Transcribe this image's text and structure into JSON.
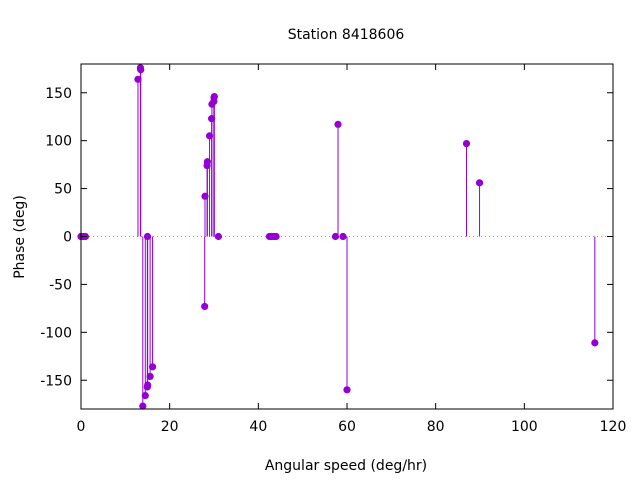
{
  "chart_data": {
    "type": "scatter",
    "style": "impulses-with-points",
    "title": "Station 8418606",
    "xlabel": "Angular speed (deg/hr)",
    "ylabel": "Phase (deg)",
    "xlim": [
      0,
      120
    ],
    "ylim": [
      -180,
      180
    ],
    "x_ticks": [
      0,
      20,
      40,
      60,
      80,
      100,
      120
    ],
    "y_ticks": [
      -150,
      -100,
      -50,
      0,
      50,
      100,
      150
    ],
    "grid": false,
    "zero_line": true,
    "color": "#9400d3",
    "points": [
      {
        "x": 0.0,
        "y": 0
      },
      {
        "x": 0.04,
        "y": 0
      },
      {
        "x": 0.08,
        "y": 0
      },
      {
        "x": 0.5,
        "y": 0
      },
      {
        "x": 1.0,
        "y": 0
      },
      {
        "x": 12.85,
        "y": 164
      },
      {
        "x": 13.4,
        "y": 176
      },
      {
        "x": 13.47,
        "y": 174
      },
      {
        "x": 13.94,
        "y": -177
      },
      {
        "x": 14.5,
        "y": -166
      },
      {
        "x": 14.96,
        "y": -157
      },
      {
        "x": 15.0,
        "y": 0
      },
      {
        "x": 15.04,
        "y": -155
      },
      {
        "x": 15.59,
        "y": -146
      },
      {
        "x": 16.14,
        "y": -136
      },
      {
        "x": 27.9,
        "y": -73
      },
      {
        "x": 27.97,
        "y": 42
      },
      {
        "x": 28.44,
        "y": 74
      },
      {
        "x": 28.51,
        "y": 78
      },
      {
        "x": 29.0,
        "y": 105
      },
      {
        "x": 29.46,
        "y": 123
      },
      {
        "x": 29.53,
        "y": 138
      },
      {
        "x": 29.96,
        "y": 141
      },
      {
        "x": 30.0,
        "y": 145
      },
      {
        "x": 30.08,
        "y": 146
      },
      {
        "x": 31.0,
        "y": 0
      },
      {
        "x": 42.5,
        "y": 0
      },
      {
        "x": 43.0,
        "y": 0
      },
      {
        "x": 43.5,
        "y": 0
      },
      {
        "x": 44.0,
        "y": 0
      },
      {
        "x": 57.4,
        "y": 0
      },
      {
        "x": 57.97,
        "y": 117
      },
      {
        "x": 59.1,
        "y": 0
      },
      {
        "x": 60.0,
        "y": -160
      },
      {
        "x": 86.95,
        "y": 97
      },
      {
        "x": 89.9,
        "y": 56
      },
      {
        "x": 115.9,
        "y": -111
      }
    ]
  }
}
